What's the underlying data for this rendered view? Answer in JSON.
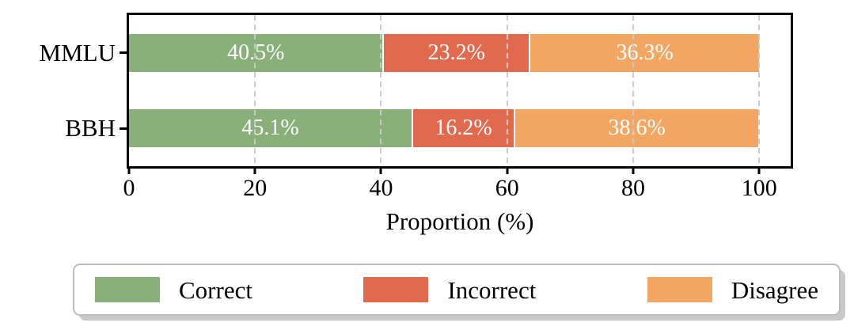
{
  "chart_data": {
    "type": "bar",
    "orientation": "horizontal",
    "stacked": true,
    "title": "",
    "xlabel": "Proportion (%)",
    "ylabel": "",
    "categories": [
      "MMLU",
      "BBH"
    ],
    "series": [
      {
        "name": "Correct",
        "color": "#8ab07a",
        "values": [
          40.5,
          45.1
        ]
      },
      {
        "name": "Incorrect",
        "color": "#e0694e",
        "values": [
          23.2,
          16.2
        ]
      },
      {
        "name": "Disagree",
        "color": "#f2a661",
        "values": [
          36.3,
          38.6
        ]
      }
    ],
    "bar_labels": [
      [
        "40.5%",
        "23.2%",
        "36.3%"
      ],
      [
        "45.1%",
        "16.2%",
        "38.6%"
      ]
    ],
    "bar_label_color": "#ffffff",
    "x_ticks": [
      0,
      20,
      40,
      60,
      80,
      100
    ],
    "xlim": [
      0,
      105
    ],
    "grid": {
      "axis": "x",
      "style": "dashed",
      "color": "#c9c9c9",
      "on": true
    },
    "axis_color": "#000000",
    "legend": {
      "position": "bottom",
      "entries": [
        "Correct",
        "Incorrect",
        "Disagree"
      ]
    }
  }
}
